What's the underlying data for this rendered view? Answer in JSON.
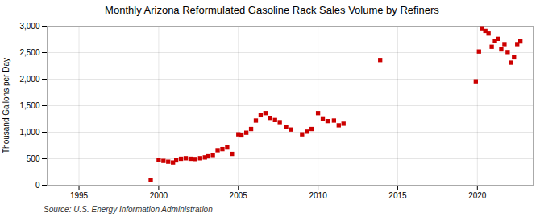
{
  "chart_data": {
    "type": "scatter",
    "title": "Monthly Arizona Reformulated Gasoline Rack Sales Volume by Refiners",
    "ylabel": "Thousand Gallons per Day",
    "source": "Source: U.S. Energy Information Administration",
    "color": "#cc0000",
    "marker": "square",
    "grid": true,
    "xlim": [
      1993.0,
      2023.5
    ],
    "xticks": [
      1995,
      2000,
      2005,
      2010,
      2015,
      2020
    ],
    "ylim": [
      0,
      3000
    ],
    "yticks": [
      0,
      500,
      {
        "value": 1000,
        "label": "1,000"
      },
      {
        "value": 1500,
        "label": "1,500"
      },
      {
        "value": 2000,
        "label": "2,000"
      },
      {
        "value": 2500,
        "label": "2,500"
      },
      {
        "value": 3000,
        "label": "3,000"
      }
    ],
    "x": [
      1999.5,
      2000.0,
      2000.3,
      2000.6,
      2000.9,
      2001.1,
      2001.4,
      2001.7,
      2002.0,
      2002.3,
      2002.6,
      2002.9,
      2003.1,
      2003.4,
      2003.7,
      2004.0,
      2004.3,
      2004.6,
      2005.0,
      2005.2,
      2005.5,
      2005.8,
      2006.1,
      2006.4,
      2006.7,
      2007.0,
      2007.3,
      2007.6,
      2008.0,
      2008.3,
      2009.0,
      2009.3,
      2009.6,
      2010.0,
      2010.3,
      2010.6,
      2011.0,
      2011.3,
      2011.6,
      2013.9,
      2019.9,
      2020.1,
      2020.3,
      2020.5,
      2020.7,
      2020.9,
      2021.1,
      2021.3,
      2021.5,
      2021.7,
      2021.9,
      2022.1,
      2022.3,
      2022.5,
      2022.7
    ],
    "values": [
      100,
      480,
      460,
      445,
      430,
      470,
      500,
      510,
      500,
      495,
      510,
      525,
      545,
      570,
      660,
      680,
      710,
      590,
      960,
      940,
      990,
      1060,
      1220,
      1320,
      1360,
      1270,
      1230,
      1190,
      1100,
      1050,
      960,
      1010,
      1060,
      1360,
      1260,
      1210,
      1220,
      1130,
      1160,
      2360,
      1960,
      2520,
      2960,
      2910,
      2860,
      2610,
      2720,
      2760,
      2560,
      2660,
      2510,
      2310,
      2410,
      2660,
      2710
    ]
  }
}
